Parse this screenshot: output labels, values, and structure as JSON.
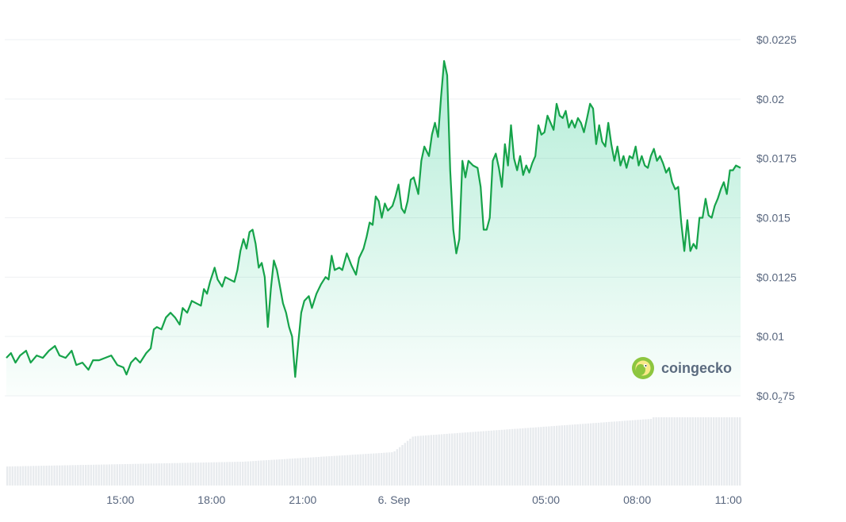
{
  "watermark": {
    "label": "coingecko",
    "icon": "coingecko-logo-icon"
  },
  "colors": {
    "line": "#16a34a",
    "area_top": "#16c784",
    "grid": "#eef0f3",
    "volume": "#e8ebee",
    "tick_text": "#58667e"
  },
  "chart_data": {
    "type": "area",
    "title": "",
    "xlabel": "",
    "ylabel": "",
    "ylim": [
      0.0075,
      0.0225
    ],
    "yticks": [
      {
        "value": 0.0225,
        "label": "$0.0225"
      },
      {
        "value": 0.02,
        "label": "$0.02"
      },
      {
        "value": 0.0175,
        "label": "$0.0175"
      },
      {
        "value": 0.015,
        "label": "$0.015"
      },
      {
        "value": 0.0125,
        "label": "$0.0125"
      },
      {
        "value": 0.01,
        "label": "$0.01"
      },
      {
        "value": 0.0075,
        "label_main": "$0.0",
        "label_sub": "2",
        "label_tail": "75"
      }
    ],
    "xticks": [
      {
        "hour": 15.0,
        "label": "15:00"
      },
      {
        "hour": 18.0,
        "label": "18:00"
      },
      {
        "hour": 21.0,
        "label": "21:00"
      },
      {
        "hour": 24.0,
        "label": "6. Sep"
      },
      {
        "hour": 29.0,
        "label": "05:00"
      },
      {
        "hour": 32.0,
        "label": "08:00"
      },
      {
        "hour": 35.0,
        "label": "11:00"
      }
    ],
    "x_hour_range": [
      11.25,
      35.4
    ],
    "grid": true,
    "series": [
      {
        "points": [
          [
            11.25,
            0.0091
          ],
          [
            11.4,
            0.0093
          ],
          [
            11.55,
            0.0089
          ],
          [
            11.7,
            0.0092
          ],
          [
            11.9,
            0.0094
          ],
          [
            12.05,
            0.0089
          ],
          [
            12.25,
            0.0092
          ],
          [
            12.45,
            0.0091
          ],
          [
            12.65,
            0.0094
          ],
          [
            12.85,
            0.0096
          ],
          [
            13.0,
            0.0092
          ],
          [
            13.2,
            0.0091
          ],
          [
            13.4,
            0.0094
          ],
          [
            13.55,
            0.0088
          ],
          [
            13.75,
            0.0089
          ],
          [
            13.95,
            0.0086
          ],
          [
            14.1,
            0.009
          ],
          [
            14.3,
            0.009
          ],
          [
            14.5,
            0.0091
          ],
          [
            14.7,
            0.0092
          ],
          [
            14.9,
            0.0088
          ],
          [
            15.1,
            0.0087
          ],
          [
            15.2,
            0.0084
          ],
          [
            15.35,
            0.0089
          ],
          [
            15.5,
            0.0091
          ],
          [
            15.65,
            0.0089
          ],
          [
            15.85,
            0.0093
          ],
          [
            16.0,
            0.0095
          ],
          [
            16.1,
            0.0103
          ],
          [
            16.2,
            0.0104
          ],
          [
            16.35,
            0.0103
          ],
          [
            16.5,
            0.0108
          ],
          [
            16.65,
            0.011
          ],
          [
            16.8,
            0.0108
          ],
          [
            16.95,
            0.0105
          ],
          [
            17.05,
            0.0112
          ],
          [
            17.2,
            0.011
          ],
          [
            17.35,
            0.0115
          ],
          [
            17.5,
            0.0114
          ],
          [
            17.65,
            0.0113
          ],
          [
            17.75,
            0.012
          ],
          [
            17.85,
            0.0118
          ],
          [
            17.95,
            0.0123
          ],
          [
            18.1,
            0.0129
          ],
          [
            18.2,
            0.0124
          ],
          [
            18.35,
            0.0121
          ],
          [
            18.45,
            0.0125
          ],
          [
            18.6,
            0.0124
          ],
          [
            18.75,
            0.0123
          ],
          [
            18.85,
            0.0128
          ],
          [
            18.95,
            0.0136
          ],
          [
            19.05,
            0.0141
          ],
          [
            19.15,
            0.0137
          ],
          [
            19.25,
            0.0144
          ],
          [
            19.35,
            0.0145
          ],
          [
            19.45,
            0.0139
          ],
          [
            19.55,
            0.0129
          ],
          [
            19.65,
            0.0131
          ],
          [
            19.75,
            0.0125
          ],
          [
            19.85,
            0.0104
          ],
          [
            19.95,
            0.012
          ],
          [
            20.05,
            0.0132
          ],
          [
            20.15,
            0.0128
          ],
          [
            20.25,
            0.0121
          ],
          [
            20.35,
            0.0114
          ],
          [
            20.45,
            0.011
          ],
          [
            20.55,
            0.0104
          ],
          [
            20.65,
            0.01
          ],
          [
            20.75,
            0.0083
          ],
          [
            20.85,
            0.0097
          ],
          [
            20.95,
            0.011
          ],
          [
            21.05,
            0.0115
          ],
          [
            21.2,
            0.0117
          ],
          [
            21.3,
            0.0112
          ],
          [
            21.45,
            0.0118
          ],
          [
            21.6,
            0.0122
          ],
          [
            21.75,
            0.0125
          ],
          [
            21.85,
            0.0124
          ],
          [
            21.95,
            0.0134
          ],
          [
            22.05,
            0.0128
          ],
          [
            22.2,
            0.0129
          ],
          [
            22.3,
            0.0128
          ],
          [
            22.45,
            0.0135
          ],
          [
            22.6,
            0.013
          ],
          [
            22.75,
            0.0126
          ],
          [
            22.85,
            0.0133
          ],
          [
            23.0,
            0.0137
          ],
          [
            23.1,
            0.0142
          ],
          [
            23.2,
            0.0148
          ],
          [
            23.3,
            0.0147
          ],
          [
            23.4,
            0.0159
          ],
          [
            23.5,
            0.0157
          ],
          [
            23.6,
            0.015
          ],
          [
            23.7,
            0.0156
          ],
          [
            23.8,
            0.0153
          ],
          [
            23.95,
            0.0155
          ],
          [
            24.05,
            0.0159
          ],
          [
            24.15,
            0.0164
          ],
          [
            24.25,
            0.0154
          ],
          [
            24.35,
            0.0152
          ],
          [
            24.45,
            0.0157
          ],
          [
            24.55,
            0.0166
          ],
          [
            24.65,
            0.0167
          ],
          [
            24.8,
            0.016
          ],
          [
            24.9,
            0.0174
          ],
          [
            25.0,
            0.018
          ],
          [
            25.15,
            0.0176
          ],
          [
            25.25,
            0.0185
          ],
          [
            25.35,
            0.019
          ],
          [
            25.45,
            0.0184
          ],
          [
            25.55,
            0.0201
          ],
          [
            25.65,
            0.0216
          ],
          [
            25.75,
            0.021
          ],
          [
            25.85,
            0.017
          ],
          [
            25.95,
            0.0145
          ],
          [
            26.05,
            0.0135
          ],
          [
            26.15,
            0.0141
          ],
          [
            26.25,
            0.0174
          ],
          [
            26.35,
            0.0167
          ],
          [
            26.45,
            0.0174
          ],
          [
            26.6,
            0.0172
          ],
          [
            26.75,
            0.0171
          ],
          [
            26.85,
            0.0163
          ],
          [
            26.95,
            0.0145
          ],
          [
            27.05,
            0.0145
          ],
          [
            27.15,
            0.015
          ],
          [
            27.25,
            0.0174
          ],
          [
            27.35,
            0.0177
          ],
          [
            27.45,
            0.0171
          ],
          [
            27.55,
            0.0163
          ],
          [
            27.65,
            0.0181
          ],
          [
            27.75,
            0.0172
          ],
          [
            27.85,
            0.0189
          ],
          [
            27.95,
            0.0175
          ],
          [
            28.05,
            0.017
          ],
          [
            28.15,
            0.0176
          ],
          [
            28.25,
            0.0168
          ],
          [
            28.35,
            0.0172
          ],
          [
            28.45,
            0.0169
          ],
          [
            28.55,
            0.0173
          ],
          [
            28.65,
            0.0176
          ],
          [
            28.75,
            0.0189
          ],
          [
            28.85,
            0.0185
          ],
          [
            28.95,
            0.0186
          ],
          [
            29.05,
            0.0193
          ],
          [
            29.15,
            0.019
          ],
          [
            29.25,
            0.0187
          ],
          [
            29.35,
            0.0198
          ],
          [
            29.45,
            0.0193
          ],
          [
            29.55,
            0.0192
          ],
          [
            29.65,
            0.0195
          ],
          [
            29.75,
            0.0188
          ],
          [
            29.85,
            0.0191
          ],
          [
            29.95,
            0.0188
          ],
          [
            30.05,
            0.0192
          ],
          [
            30.15,
            0.019
          ],
          [
            30.25,
            0.0186
          ],
          [
            30.35,
            0.0192
          ],
          [
            30.45,
            0.0198
          ],
          [
            30.55,
            0.0196
          ],
          [
            30.65,
            0.0181
          ],
          [
            30.75,
            0.0189
          ],
          [
            30.85,
            0.0182
          ],
          [
            30.95,
            0.018
          ],
          [
            31.05,
            0.019
          ],
          [
            31.15,
            0.0181
          ],
          [
            31.25,
            0.0174
          ],
          [
            31.35,
            0.018
          ],
          [
            31.45,
            0.0172
          ],
          [
            31.55,
            0.0176
          ],
          [
            31.65,
            0.0171
          ],
          [
            31.75,
            0.0176
          ],
          [
            31.85,
            0.0175
          ],
          [
            31.95,
            0.018
          ],
          [
            32.05,
            0.0172
          ],
          [
            32.15,
            0.0176
          ],
          [
            32.25,
            0.0172
          ],
          [
            32.35,
            0.0171
          ],
          [
            32.45,
            0.0176
          ],
          [
            32.55,
            0.0179
          ],
          [
            32.65,
            0.0174
          ],
          [
            32.75,
            0.0176
          ],
          [
            32.85,
            0.0173
          ],
          [
            32.95,
            0.0169
          ],
          [
            33.05,
            0.0171
          ],
          [
            33.15,
            0.0165
          ],
          [
            33.25,
            0.0162
          ],
          [
            33.35,
            0.0163
          ],
          [
            33.45,
            0.0148
          ],
          [
            33.55,
            0.0136
          ],
          [
            33.65,
            0.0149
          ],
          [
            33.75,
            0.0136
          ],
          [
            33.85,
            0.0139
          ],
          [
            33.95,
            0.0137
          ],
          [
            34.05,
            0.015
          ],
          [
            34.15,
            0.015
          ],
          [
            34.25,
            0.0158
          ],
          [
            34.35,
            0.0151
          ],
          [
            34.45,
            0.015
          ],
          [
            34.55,
            0.0155
          ],
          [
            34.65,
            0.0158
          ],
          [
            34.75,
            0.0162
          ],
          [
            34.85,
            0.0165
          ],
          [
            34.95,
            0.016
          ],
          [
            35.05,
            0.017
          ],
          [
            35.15,
            0.017
          ],
          [
            35.25,
            0.0172
          ],
          [
            35.4,
            0.0171
          ]
        ]
      }
    ]
  }
}
